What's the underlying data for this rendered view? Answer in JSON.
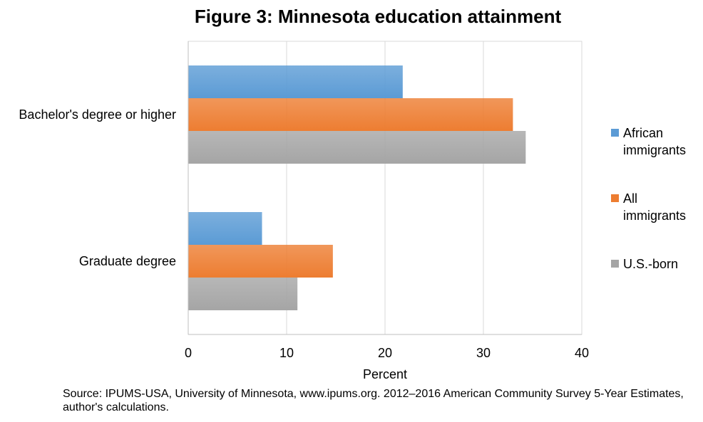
{
  "chart_data": {
    "type": "bar",
    "orientation": "horizontal",
    "title": "Figure 3: Minnesota education attainment",
    "xlabel": "Percent",
    "categories": [
      "Bachelor's degree or higher",
      "Graduate degree"
    ],
    "series": [
      {
        "name": "African immigrants",
        "color": "#5b9bd5",
        "values": [
          21.8,
          7.5
        ]
      },
      {
        "name": "All immigrants",
        "color": "#ed7d31",
        "values": [
          33.0,
          14.7
        ]
      },
      {
        "name": "U.S.-born",
        "color": "#a5a5a5",
        "values": [
          34.3,
          11.1
        ]
      }
    ],
    "xlim": [
      0,
      40
    ],
    "xticks": [
      "0",
      "10",
      "20",
      "30",
      "40"
    ],
    "grid": true,
    "legend": "right",
    "legend_lines": [
      [
        "African",
        "immigrants"
      ],
      [
        "All",
        "immigrants"
      ],
      [
        "U.S.-born"
      ]
    ]
  },
  "source_note": "Source: IPUMS-USA, University of Minnesota, www.ipums.org. 2012–2016 American Community Survey 5-Year Estimates, author's calculations."
}
